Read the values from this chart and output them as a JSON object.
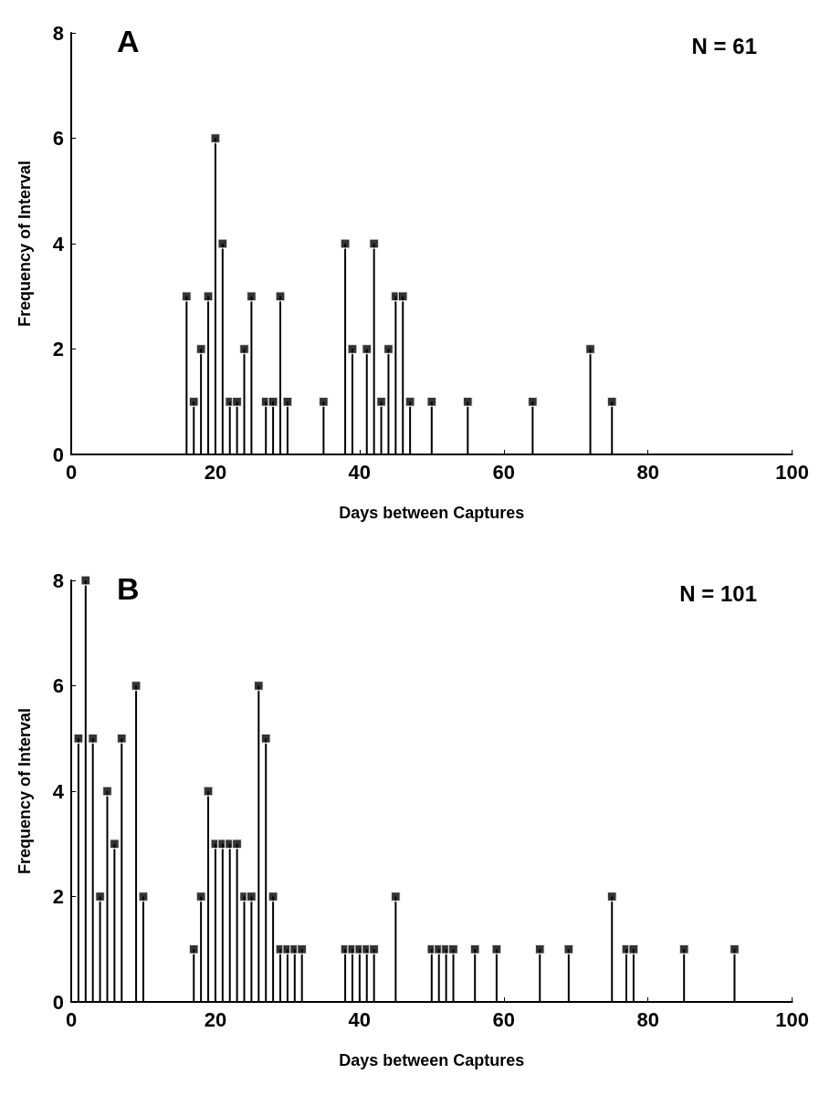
{
  "chart_data": [
    {
      "type": "lollipop",
      "xlabel": "Days between Captures",
      "ylabel": "Frequency of Interval",
      "annotations": [
        "A",
        "N = 61"
      ],
      "marker": "square",
      "color": "#000000",
      "grid": false,
      "x": [
        16,
        17,
        18,
        19,
        20,
        21,
        22,
        23,
        24,
        25,
        27,
        28,
        29,
        30,
        35,
        38,
        39,
        41,
        42,
        43,
        44,
        45,
        46,
        47,
        50,
        55,
        64,
        72,
        75
      ],
      "values": [
        3,
        1,
        2,
        3,
        6,
        4,
        1,
        1,
        2,
        3,
        1,
        1,
        3,
        1,
        1,
        4,
        2,
        2,
        4,
        1,
        2,
        3,
        3,
        1,
        1,
        1,
        1,
        2,
        1
      ],
      "xlim": [
        0,
        100
      ],
      "xticks": [
        0,
        20,
        40,
        60,
        80,
        100
      ],
      "ylim": [
        0,
        8
      ],
      "yticks": [
        0,
        2,
        4,
        6,
        8
      ]
    },
    {
      "type": "lollipop",
      "xlabel": "Days between Captures",
      "ylabel": "Frequency of Interval",
      "annotations": [
        "B",
        "N = 101"
      ],
      "marker": "square",
      "color": "#000000",
      "grid": false,
      "x": [
        1,
        2,
        3,
        4,
        5,
        6,
        7,
        9,
        10,
        17,
        18,
        19,
        20,
        21,
        22,
        23,
        24,
        25,
        26,
        27,
        28,
        29,
        30,
        31,
        32,
        38,
        39,
        40,
        41,
        42,
        45,
        50,
        51,
        52,
        53,
        56,
        59,
        65,
        69,
        75,
        77,
        78,
        85,
        92
      ],
      "values": [
        5,
        8,
        5,
        2,
        4,
        3,
        5,
        6,
        2,
        1,
        2,
        4,
        3,
        3,
        3,
        3,
        2,
        2,
        6,
        5,
        2,
        1,
        1,
        1,
        1,
        1,
        1,
        1,
        1,
        1,
        2,
        1,
        1,
        1,
        1,
        1,
        1,
        1,
        1,
        2,
        1,
        1,
        1,
        1
      ],
      "xlim": [
        0,
        100
      ],
      "xticks": [
        0,
        20,
        40,
        60,
        80,
        100
      ],
      "ylim": [
        0,
        8
      ],
      "yticks": [
        0,
        2,
        4,
        6,
        8
      ]
    }
  ]
}
